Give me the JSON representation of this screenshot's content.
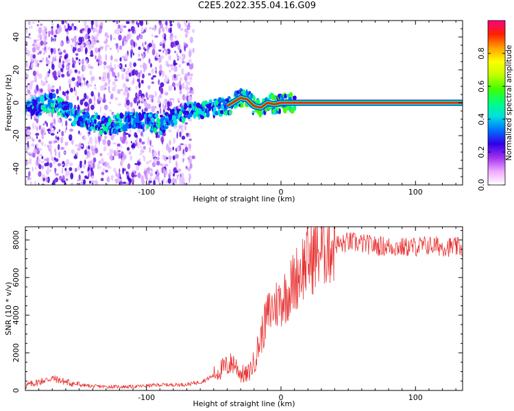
{
  "title": "C2E5.2022.355.04.16.G09",
  "chart_data": [
    {
      "type": "heatmap",
      "xlabel": "Height of straight line (km)",
      "ylabel": "Frequency (Hz)",
      "xlim": [
        -190,
        135
      ],
      "ylim": [
        -50,
        50
      ],
      "xticks": [
        -100,
        0,
        100
      ],
      "yticks": [
        -40,
        -20,
        0,
        20,
        40
      ],
      "colorbar": {
        "label": "Normalized spectral amplitude",
        "range": [
          0,
          1
        ],
        "ticks": [
          0.0,
          0.2,
          0.4,
          0.6,
          0.8
        ],
        "tick_labels": [
          "0.0",
          "0.2",
          "0.4",
          "0.6",
          "0.8"
        ],
        "colors": [
          "#ffffff",
          "#f0a8ff",
          "#a030f0",
          "#3000e8",
          "#0070ff",
          "#00e0e0",
          "#00ff80",
          "#40ff00",
          "#c0ff00",
          "#ffff00",
          "#ffa000",
          "#ff2000",
          "#ff0080"
        ]
      },
      "signal_track": [
        {
          "x": -190,
          "f": -3
        },
        {
          "x": -180,
          "f": -2
        },
        {
          "x": -170,
          "f": 0
        },
        {
          "x": -160,
          "f": -4
        },
        {
          "x": -150,
          "f": -10
        },
        {
          "x": -140,
          "f": -12
        },
        {
          "x": -130,
          "f": -14
        },
        {
          "x": -120,
          "f": -12
        },
        {
          "x": -110,
          "f": -11
        },
        {
          "x": -100,
          "f": -12
        },
        {
          "x": -90,
          "f": -13
        },
        {
          "x": -80,
          "f": -8
        },
        {
          "x": -70,
          "f": -5
        },
        {
          "x": -60,
          "f": -4
        },
        {
          "x": -50,
          "f": -3
        },
        {
          "x": -40,
          "f": -2
        },
        {
          "x": -30,
          "f": 3
        },
        {
          "x": -25,
          "f": 2
        },
        {
          "x": -20,
          "f": -2
        },
        {
          "x": -15,
          "f": -3
        },
        {
          "x": -10,
          "f": 0
        },
        {
          "x": -5,
          "f": -1
        },
        {
          "x": 0,
          "f": 0
        },
        {
          "x": 10,
          "f": 0
        },
        {
          "x": 135,
          "f": 0
        }
      ]
    },
    {
      "type": "line",
      "xlabel": "Height of straight line (km)",
      "ylabel": "SNR (10 * v/v)",
      "xlim": [
        -190,
        135
      ],
      "ylim": [
        0,
        8700
      ],
      "xticks": [
        -100,
        0,
        100
      ],
      "yticks": [
        0,
        2000,
        4000,
        6000,
        8000
      ],
      "color": "#e83030",
      "series": [
        {
          "points": [
            {
              "x": -190,
              "y": 250
            },
            {
              "x": -180,
              "y": 450
            },
            {
              "x": -170,
              "y": 650
            },
            {
              "x": -160,
              "y": 450
            },
            {
              "x": -150,
              "y": 300
            },
            {
              "x": -140,
              "y": 220
            },
            {
              "x": -130,
              "y": 200
            },
            {
              "x": -120,
              "y": 200
            },
            {
              "x": -110,
              "y": 200
            },
            {
              "x": -100,
              "y": 250
            },
            {
              "x": -90,
              "y": 300
            },
            {
              "x": -80,
              "y": 300
            },
            {
              "x": -70,
              "y": 320
            },
            {
              "x": -60,
              "y": 450
            },
            {
              "x": -55,
              "y": 600
            },
            {
              "x": -50,
              "y": 800
            },
            {
              "x": -45,
              "y": 1100
            },
            {
              "x": -40,
              "y": 1300
            },
            {
              "x": -35,
              "y": 1500
            },
            {
              "x": -30,
              "y": 900
            },
            {
              "x": -25,
              "y": 800
            },
            {
              "x": -20,
              "y": 1500
            },
            {
              "x": -15,
              "y": 2800
            },
            {
              "x": -10,
              "y": 4000
            },
            {
              "x": -5,
              "y": 4500
            },
            {
              "x": 0,
              "y": 4800
            },
            {
              "x": 5,
              "y": 5200
            },
            {
              "x": 10,
              "y": 5800
            },
            {
              "x": 15,
              "y": 6500
            },
            {
              "x": 20,
              "y": 6900
            },
            {
              "x": 25,
              "y": 7200
            },
            {
              "x": 30,
              "y": 7500
            },
            {
              "x": 35,
              "y": 7700
            },
            {
              "x": 40,
              "y": 7800
            },
            {
              "x": 45,
              "y": 7750
            },
            {
              "x": 50,
              "y": 7900
            },
            {
              "x": 60,
              "y": 7800
            },
            {
              "x": 70,
              "y": 7700
            },
            {
              "x": 80,
              "y": 7650
            },
            {
              "x": 90,
              "y": 7600
            },
            {
              "x": 100,
              "y": 7650
            },
            {
              "x": 110,
              "y": 7700
            },
            {
              "x": 120,
              "y": 7650
            },
            {
              "x": 135,
              "y": 7600
            }
          ]
        }
      ]
    }
  ]
}
